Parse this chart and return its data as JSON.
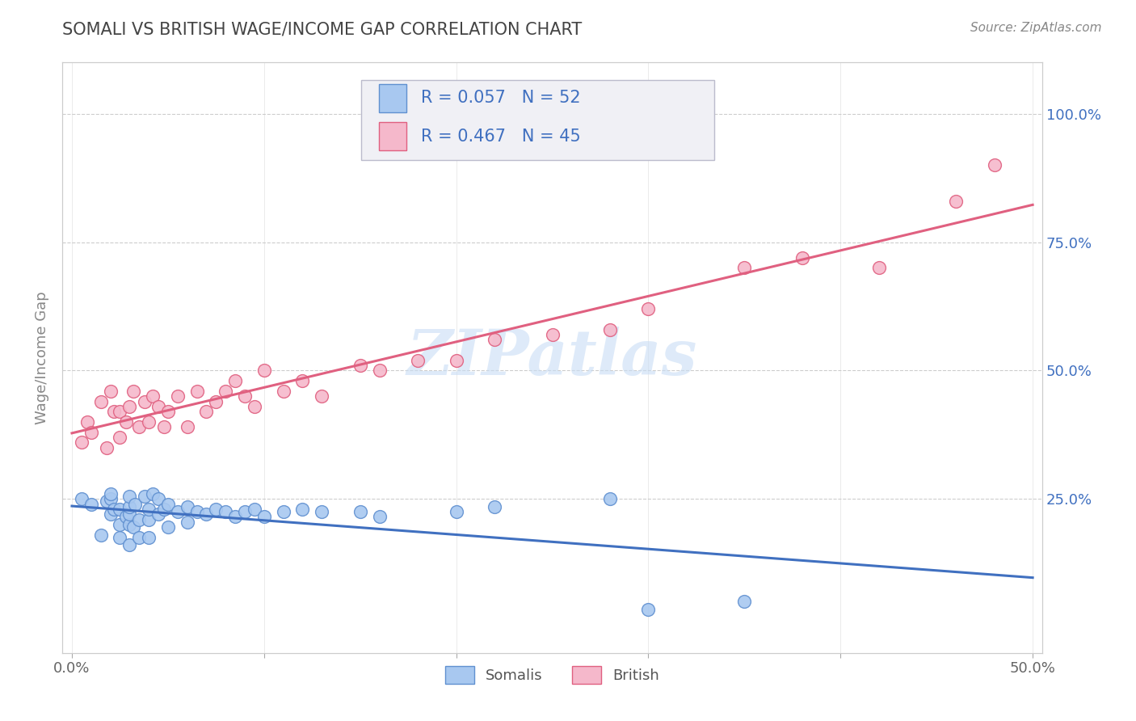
{
  "title": "SOMALI VS BRITISH WAGE/INCOME GAP CORRELATION CHART",
  "source": "Source: ZipAtlas.com",
  "ylabel": "Wage/Income Gap",
  "xlim": [
    -0.005,
    0.505
  ],
  "ylim": [
    -0.05,
    1.1
  ],
  "xtick_positions": [
    0.0,
    0.1,
    0.2,
    0.3,
    0.4,
    0.5
  ],
  "xtick_labels": [
    "0.0%",
    "",
    "",
    "",
    "",
    "50.0%"
  ],
  "ytick_vals_right": [
    0.25,
    0.5,
    0.75,
    1.0
  ],
  "ytick_labels_right": [
    "25.0%",
    "50.0%",
    "75.0%",
    "100.0%"
  ],
  "somalis_color": "#a8c8f0",
  "british_color": "#f5b8cb",
  "somalis_edge_color": "#6090d0",
  "british_edge_color": "#e06080",
  "somalis_line_color": "#4070c0",
  "british_line_color": "#e06080",
  "legend_text_color": "#4070c0",
  "legend_R_somalis": "R = 0.057",
  "legend_N_somalis": "N = 52",
  "legend_R_british": "R = 0.467",
  "legend_N_british": "N = 45",
  "watermark": "ZIPatlas",
  "background_color": "#ffffff",
  "grid_color": "#c8c8c8",
  "title_color": "#444444",
  "source_color": "#888888",
  "ylabel_color": "#888888",
  "somalis_x": [
    0.005,
    0.01,
    0.015,
    0.018,
    0.02,
    0.02,
    0.02,
    0.022,
    0.025,
    0.025,
    0.025,
    0.028,
    0.03,
    0.03,
    0.03,
    0.03,
    0.03,
    0.032,
    0.033,
    0.035,
    0.035,
    0.038,
    0.04,
    0.04,
    0.04,
    0.042,
    0.045,
    0.045,
    0.048,
    0.05,
    0.05,
    0.055,
    0.06,
    0.06,
    0.065,
    0.07,
    0.075,
    0.08,
    0.085,
    0.09,
    0.095,
    0.1,
    0.11,
    0.12,
    0.13,
    0.15,
    0.16,
    0.2,
    0.22,
    0.28,
    0.3,
    0.35
  ],
  "somalis_y": [
    0.25,
    0.24,
    0.18,
    0.245,
    0.22,
    0.25,
    0.26,
    0.23,
    0.175,
    0.2,
    0.23,
    0.215,
    0.16,
    0.2,
    0.22,
    0.235,
    0.255,
    0.195,
    0.24,
    0.175,
    0.21,
    0.255,
    0.175,
    0.21,
    0.23,
    0.26,
    0.22,
    0.25,
    0.23,
    0.195,
    0.24,
    0.225,
    0.205,
    0.235,
    0.225,
    0.22,
    0.23,
    0.225,
    0.215,
    0.225,
    0.23,
    0.215,
    0.225,
    0.23,
    0.225,
    0.225,
    0.215,
    0.225,
    0.235,
    0.25,
    0.035,
    0.05
  ],
  "british_x": [
    0.005,
    0.008,
    0.01,
    0.015,
    0.018,
    0.02,
    0.022,
    0.025,
    0.025,
    0.028,
    0.03,
    0.032,
    0.035,
    0.038,
    0.04,
    0.042,
    0.045,
    0.048,
    0.05,
    0.055,
    0.06,
    0.065,
    0.07,
    0.075,
    0.08,
    0.085,
    0.09,
    0.095,
    0.1,
    0.11,
    0.12,
    0.13,
    0.15,
    0.16,
    0.18,
    0.2,
    0.22,
    0.25,
    0.28,
    0.3,
    0.35,
    0.38,
    0.42,
    0.46,
    0.48
  ],
  "british_y": [
    0.36,
    0.4,
    0.38,
    0.44,
    0.35,
    0.46,
    0.42,
    0.37,
    0.42,
    0.4,
    0.43,
    0.46,
    0.39,
    0.44,
    0.4,
    0.45,
    0.43,
    0.39,
    0.42,
    0.45,
    0.39,
    0.46,
    0.42,
    0.44,
    0.46,
    0.48,
    0.45,
    0.43,
    0.5,
    0.46,
    0.48,
    0.45,
    0.51,
    0.5,
    0.52,
    0.52,
    0.56,
    0.57,
    0.58,
    0.62,
    0.7,
    0.72,
    0.7,
    0.83,
    0.9
  ]
}
